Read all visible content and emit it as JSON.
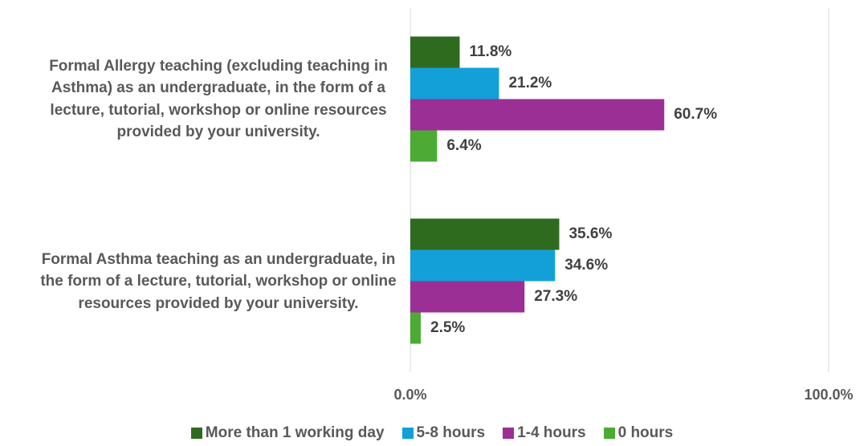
{
  "chart_data": {
    "type": "hbar",
    "categories": [
      "Formal Allergy teaching (excluding teaching in Asthma) as an undergraduate, in the form of a lecture, tutorial, workshop or online resources provided by your university.",
      "Formal Asthma teaching as an undergraduate, in the form of a lecture, tutorial, workshop or online resources provided by your university."
    ],
    "series": [
      {
        "name": "More than 1 working day",
        "color": "#2e6b1f",
        "values": [
          11.8,
          35.6
        ],
        "value_labels": [
          "11.8%",
          "35.6%"
        ]
      },
      {
        "name": "5-8 hours",
        "color": "#13a0d8",
        "values": [
          21.2,
          34.6
        ],
        "value_labels": [
          "21.2%",
          "34.6%"
        ]
      },
      {
        "name": "1-4 hours",
        "color": "#9c2f96",
        "values": [
          60.7,
          27.3
        ],
        "value_labels": [
          "60.7%",
          "27.3%"
        ]
      },
      {
        "name": "0 hours",
        "color": "#4bab35",
        "values": [
          6.4,
          2.5
        ],
        "value_labels": [
          "6.4%",
          "2.5%"
        ]
      }
    ],
    "xlim": [
      0,
      100
    ],
    "xticks": [
      {
        "value": 0,
        "label": "0.0%"
      },
      {
        "value": 100,
        "label": "100.0%"
      }
    ],
    "grid": true
  }
}
